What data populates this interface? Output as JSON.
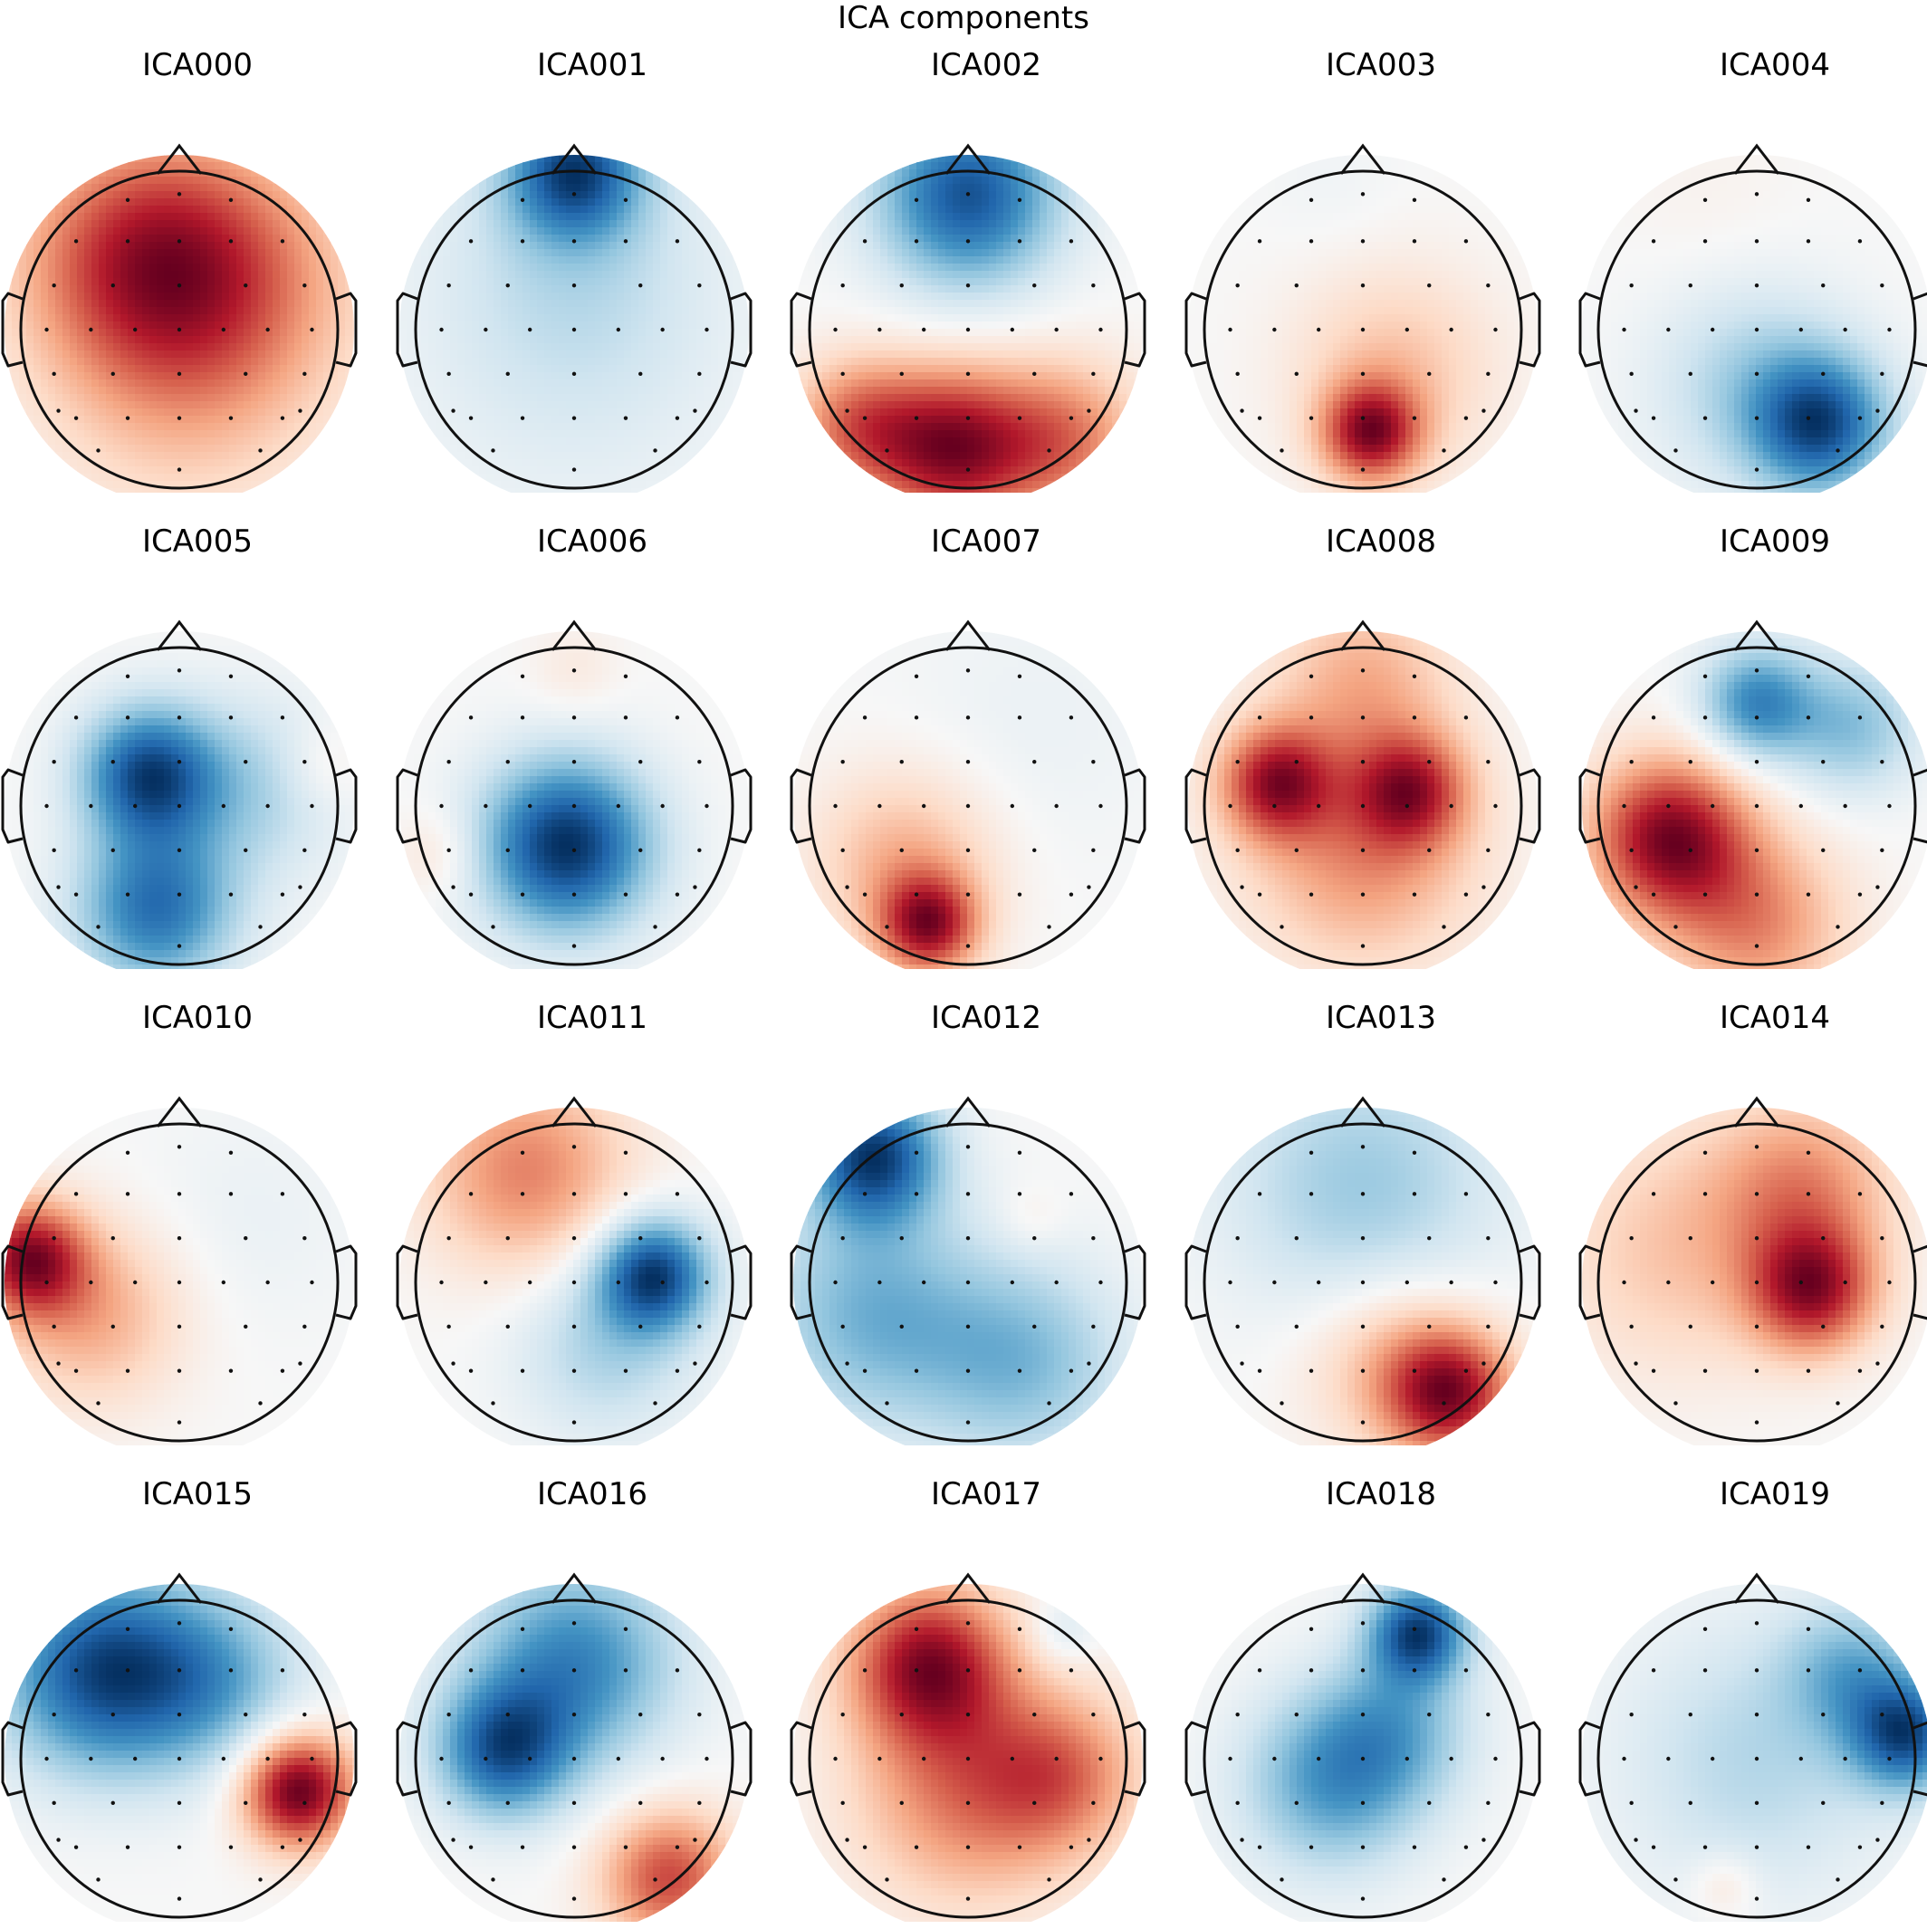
{
  "figure": {
    "title": "ICA components"
  },
  "chart_data": {
    "type": "heatmap",
    "title": "ICA components",
    "layout": {
      "rows": 4,
      "cols": 5
    },
    "colormap": {
      "negative": "#053061",
      "mid": "#f7f7f7",
      "positive": "#67001f"
    },
    "value_range": [
      -1,
      1
    ],
    "components": [
      {
        "name": "ICA000",
        "sources": [
          {
            "x": -0.25,
            "y": 0.45,
            "a": 1.0,
            "s": 0.55
          },
          {
            "x": 0.3,
            "y": 0.3,
            "a": 0.7,
            "s": 0.6
          },
          {
            "x": 0.0,
            "y": -0.5,
            "a": 0.3,
            "s": 0.6
          }
        ]
      },
      {
        "name": "ICA001",
        "sources": [
          {
            "x": 0.0,
            "y": 1.0,
            "a": -1.0,
            "s": 0.3
          },
          {
            "x": 0.0,
            "y": 0.4,
            "a": -0.25,
            "s": 0.6
          },
          {
            "x": 0.0,
            "y": -0.3,
            "a": -0.12,
            "s": 0.8
          }
        ]
      },
      {
        "name": "ICA002",
        "sources": [
          {
            "x": 0.0,
            "y": 0.85,
            "a": -1.0,
            "s": 0.4
          },
          {
            "x": -0.1,
            "y": -0.75,
            "a": 1.0,
            "s": 0.35
          },
          {
            "x": 0.6,
            "y": -0.7,
            "a": 0.6,
            "s": 0.35
          },
          {
            "x": -0.7,
            "y": -0.6,
            "a": 0.6,
            "s": 0.3
          }
        ]
      },
      {
        "name": "ICA003",
        "sources": [
          {
            "x": 0.05,
            "y": -0.65,
            "a": 1.0,
            "s": 0.22
          },
          {
            "x": 0.2,
            "y": -0.25,
            "a": 0.35,
            "s": 0.45
          },
          {
            "x": -0.2,
            "y": 0.9,
            "a": -0.05,
            "s": 0.3
          }
        ]
      },
      {
        "name": "ICA004",
        "sources": [
          {
            "x": 0.4,
            "y": -0.6,
            "a": -1.0,
            "s": 0.3
          },
          {
            "x": 0.0,
            "y": -0.35,
            "a": -0.4,
            "s": 0.45
          },
          {
            "x": -0.3,
            "y": 0.8,
            "a": 0.05,
            "s": 0.4
          }
        ]
      },
      {
        "name": "ICA005",
        "sources": [
          {
            "x": -0.2,
            "y": 0.2,
            "a": -1.0,
            "s": 0.3
          },
          {
            "x": -0.15,
            "y": -0.65,
            "a": -0.85,
            "s": 0.35
          },
          {
            "x": 0.45,
            "y": 0.1,
            "a": -0.35,
            "s": 0.4
          },
          {
            "x": 0.9,
            "y": 0.25,
            "a": 0.15,
            "s": 0.2
          }
        ]
      },
      {
        "name": "ICA006",
        "sources": [
          {
            "x": -0.05,
            "y": -0.25,
            "a": -1.0,
            "s": 0.38
          },
          {
            "x": 0.0,
            "y": 0.85,
            "a": 0.1,
            "s": 0.2
          },
          {
            "x": -0.85,
            "y": -0.3,
            "a": 0.15,
            "s": 0.2
          }
        ]
      },
      {
        "name": "ICA007",
        "sources": [
          {
            "x": -0.25,
            "y": -0.75,
            "a": 1.0,
            "s": 0.22
          },
          {
            "x": -0.4,
            "y": -0.35,
            "a": 0.45,
            "s": 0.4
          },
          {
            "x": 0.4,
            "y": 0.5,
            "a": -0.08,
            "s": 0.6
          }
        ]
      },
      {
        "name": "ICA008",
        "sources": [
          {
            "x": -0.55,
            "y": 0.15,
            "a": 1.0,
            "s": 0.25
          },
          {
            "x": 0.3,
            "y": 0.1,
            "a": 0.85,
            "s": 0.25
          },
          {
            "x": 0.0,
            "y": -0.3,
            "a": 0.6,
            "s": 0.5
          },
          {
            "x": 0.0,
            "y": 0.8,
            "a": 0.45,
            "s": 0.4
          }
        ]
      },
      {
        "name": "ICA009",
        "sources": [
          {
            "x": -0.55,
            "y": -0.2,
            "a": 1.0,
            "s": 0.35
          },
          {
            "x": 0.0,
            "y": -0.75,
            "a": 0.5,
            "s": 0.4
          },
          {
            "x": 0.0,
            "y": 0.65,
            "a": -0.7,
            "s": 0.25
          },
          {
            "x": 0.6,
            "y": 0.5,
            "a": -0.45,
            "s": 0.3
          }
        ]
      },
      {
        "name": "ICA010",
        "sources": [
          {
            "x": -0.95,
            "y": 0.15,
            "a": 1.0,
            "s": 0.25
          },
          {
            "x": -0.55,
            "y": -0.2,
            "a": 0.45,
            "s": 0.4
          },
          {
            "x": 0.45,
            "y": 0.4,
            "a": -0.08,
            "s": 0.5
          }
        ]
      },
      {
        "name": "ICA011",
        "sources": [
          {
            "x": 0.5,
            "y": 0.05,
            "a": -1.0,
            "s": 0.25
          },
          {
            "x": 0.2,
            "y": -0.4,
            "a": -0.35,
            "s": 0.4
          },
          {
            "x": -0.3,
            "y": 0.7,
            "a": 0.55,
            "s": 0.45
          }
        ]
      },
      {
        "name": "ICA012",
        "sources": [
          {
            "x": -0.6,
            "y": 0.8,
            "a": -1.0,
            "s": 0.3
          },
          {
            "x": -0.6,
            "y": -0.2,
            "a": -0.5,
            "s": 0.5
          },
          {
            "x": 0.35,
            "y": -0.5,
            "a": -0.45,
            "s": 0.45
          },
          {
            "x": 0.4,
            "y": 0.4,
            "a": 0.1,
            "s": 0.15
          }
        ]
      },
      {
        "name": "ICA013",
        "sources": [
          {
            "x": 0.55,
            "y": -0.7,
            "a": 1.0,
            "s": 0.28
          },
          {
            "x": 0.2,
            "y": -0.5,
            "a": 0.4,
            "s": 0.4
          },
          {
            "x": 0.0,
            "y": 0.6,
            "a": -0.45,
            "s": 0.6
          }
        ]
      },
      {
        "name": "ICA014",
        "sources": [
          {
            "x": 0.35,
            "y": -0.05,
            "a": 1.0,
            "s": 0.28
          },
          {
            "x": 0.3,
            "y": 0.6,
            "a": 0.55,
            "s": 0.4
          },
          {
            "x": -0.5,
            "y": 0.2,
            "a": 0.35,
            "s": 0.55
          }
        ]
      },
      {
        "name": "ICA015",
        "sources": [
          {
            "x": 0.75,
            "y": -0.2,
            "a": 1.0,
            "s": 0.25
          },
          {
            "x": -0.5,
            "y": 0.55,
            "a": -0.85,
            "s": 0.45
          },
          {
            "x": 0.2,
            "y": 0.5,
            "a": -0.45,
            "s": 0.4
          }
        ]
      },
      {
        "name": "ICA016",
        "sources": [
          {
            "x": -0.45,
            "y": 0.05,
            "a": -1.0,
            "s": 0.3
          },
          {
            "x": 0.0,
            "y": 0.6,
            "a": -0.85,
            "s": 0.45
          },
          {
            "x": 0.6,
            "y": -0.75,
            "a": 0.85,
            "s": 0.3
          }
        ]
      },
      {
        "name": "ICA017",
        "sources": [
          {
            "x": -0.25,
            "y": 0.6,
            "a": 1.0,
            "s": 0.35
          },
          {
            "x": 0.0,
            "y": -0.2,
            "a": 0.6,
            "s": 0.5
          },
          {
            "x": 0.6,
            "y": -0.1,
            "a": 0.5,
            "s": 0.35
          },
          {
            "x": 0.6,
            "y": 0.8,
            "a": -0.2,
            "s": 0.15
          }
        ]
      },
      {
        "name": "ICA018",
        "sources": [
          {
            "x": 0.35,
            "y": 0.8,
            "a": -1.0,
            "s": 0.22
          },
          {
            "x": -0.2,
            "y": -0.15,
            "a": -0.6,
            "s": 0.4
          },
          {
            "x": 0.2,
            "y": 0.2,
            "a": -0.45,
            "s": 0.35
          }
        ]
      },
      {
        "name": "ICA019",
        "sources": [
          {
            "x": 0.95,
            "y": 0.15,
            "a": -1.0,
            "s": 0.25
          },
          {
            "x": 0.6,
            "y": 0.55,
            "a": -0.5,
            "s": 0.3
          },
          {
            "x": 0.0,
            "y": 0.0,
            "a": -0.35,
            "s": 0.6
          },
          {
            "x": -0.2,
            "y": -0.8,
            "a": 0.2,
            "s": 0.15
          }
        ]
      }
    ]
  }
}
